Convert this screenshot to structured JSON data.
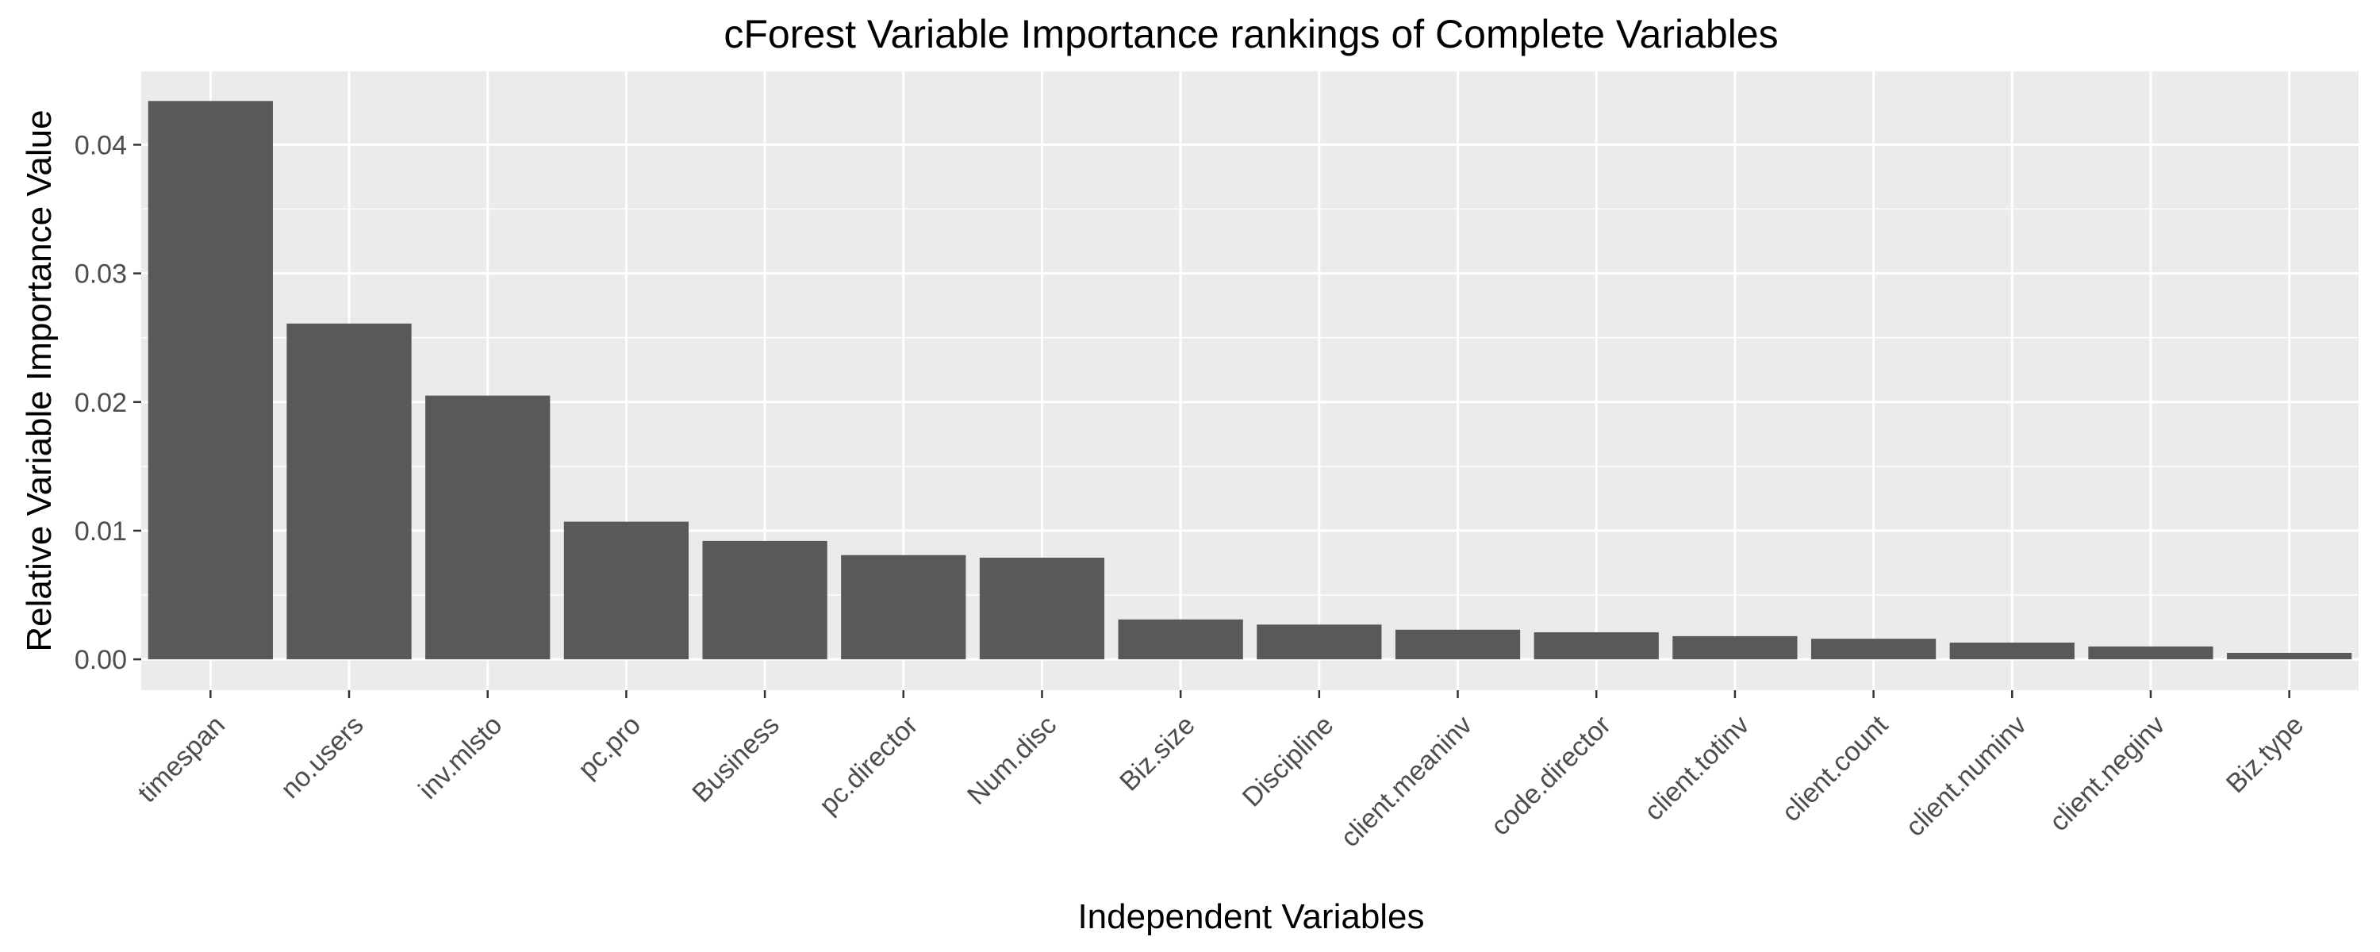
{
  "chart_data": {
    "type": "bar",
    "title": "cForest Variable Importance rankings of Complete Variables",
    "xlabel": "Independent Variables",
    "ylabel": "Relative Variable Importance Value",
    "categories": [
      "timespan",
      "no.users",
      "inv.mlsto",
      "pc.pro",
      "Business",
      "pc.director",
      "Num.disc",
      "Biz.size",
      "Discipline",
      "client.meaninv",
      "code.director",
      "client.totinv",
      "client.count",
      "client.numinv",
      "client.neginv",
      "Biz.type"
    ],
    "values": [
      0.0434,
      0.0261,
      0.0205,
      0.0107,
      0.0092,
      0.0081,
      0.0079,
      0.0031,
      0.0027,
      0.0023,
      0.0021,
      0.0018,
      0.0016,
      0.0013,
      0.001,
      0.0005
    ],
    "yticks": [
      0,
      0.01,
      0.02,
      0.03,
      0.04
    ],
    "ytick_labels": [
      "0.00",
      "0.01",
      "0.02",
      "0.03",
      "0.04"
    ],
    "ylim": [
      -0.0024,
      0.0457
    ],
    "grid": true,
    "panel_background": "#ebebeb",
    "grid_color": "#ffffff",
    "bar_color": "#595959"
  }
}
